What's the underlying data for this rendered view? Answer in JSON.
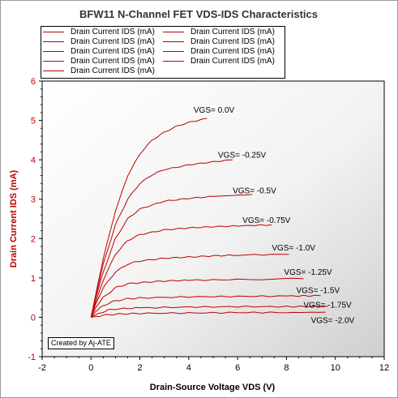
{
  "chart_data": {
    "type": "line",
    "title": "BFW11 N-Channel FET VDS-IDS Characteristics",
    "xlabel": "Drain-Source Voltage VDS (V)",
    "ylabel": "Drain Current IDS (mA)",
    "xlim": [
      -2,
      12
    ],
    "ylim": [
      -1,
      6
    ],
    "xticks": [
      "-2",
      "0",
      "2",
      "4",
      "6",
      "8",
      "10",
      "12"
    ],
    "yticks": [
      "-1",
      "0",
      "1",
      "2",
      "3",
      "4",
      "5",
      "6"
    ],
    "legend_labels": [
      "Drain Current IDS (mA)",
      "Drain Current IDS (mA)",
      "Drain Current IDS (mA)",
      "Drain Current IDS (mA)",
      "Drain Current IDS (mA)",
      "Drain Current IDS (mA)",
      "Drain Current IDS (mA)",
      "Drain Current IDS (mA)",
      "Drain Current IDS (mA)"
    ],
    "legend_placement": "top-left",
    "grid": false,
    "line_color": "#c00000",
    "annotation_box": "Created by Aj-ATE",
    "series": [
      {
        "label": "VGS=  0.0V",
        "label_at": [
          4.2,
          5.2
        ],
        "points": [
          [
            0,
            0
          ],
          [
            0.2,
            0.6
          ],
          [
            0.5,
            1.5
          ],
          [
            1,
            2.7
          ],
          [
            1.5,
            3.6
          ],
          [
            2,
            4.15
          ],
          [
            2.5,
            4.5
          ],
          [
            3,
            4.7
          ],
          [
            3.5,
            4.85
          ],
          [
            4,
            4.95
          ],
          [
            4.75,
            5.05
          ]
        ]
      },
      {
        "label": "VGS=  -0.25V",
        "label_at": [
          5.2,
          4.05
        ],
        "points": [
          [
            0,
            0
          ],
          [
            0.2,
            0.55
          ],
          [
            0.5,
            1.35
          ],
          [
            1,
            2.35
          ],
          [
            1.5,
            3.0
          ],
          [
            2,
            3.4
          ],
          [
            2.5,
            3.62
          ],
          [
            3,
            3.75
          ],
          [
            4,
            3.87
          ],
          [
            5,
            3.95
          ],
          [
            5.8,
            4.0
          ]
        ]
      },
      {
        "label": "VGS=  -0.5V",
        "label_at": [
          5.8,
          3.15
        ],
        "points": [
          [
            0,
            0
          ],
          [
            0.2,
            0.5
          ],
          [
            0.5,
            1.15
          ],
          [
            1,
            2.0
          ],
          [
            1.5,
            2.5
          ],
          [
            2,
            2.75
          ],
          [
            3,
            2.95
          ],
          [
            4,
            3.02
          ],
          [
            5,
            3.07
          ],
          [
            6.6,
            3.12
          ]
        ]
      },
      {
        "label": "VGS=  -0.75V",
        "label_at": [
          6.2,
          2.4
        ],
        "points": [
          [
            0,
            0
          ],
          [
            0.2,
            0.4
          ],
          [
            0.5,
            0.95
          ],
          [
            1,
            1.6
          ],
          [
            1.5,
            1.95
          ],
          [
            2,
            2.1
          ],
          [
            3,
            2.22
          ],
          [
            4,
            2.27
          ],
          [
            5,
            2.3
          ],
          [
            6,
            2.32
          ],
          [
            7.4,
            2.35
          ]
        ]
      },
      {
        "label": "VGS=  -1.0V",
        "label_at": [
          7.4,
          1.7
        ],
        "points": [
          [
            0,
            0
          ],
          [
            0.2,
            0.35
          ],
          [
            0.5,
            0.75
          ],
          [
            1,
            1.15
          ],
          [
            1.5,
            1.35
          ],
          [
            2,
            1.43
          ],
          [
            3,
            1.5
          ],
          [
            4,
            1.53
          ],
          [
            5,
            1.56
          ],
          [
            6,
            1.58
          ],
          [
            8.1,
            1.6
          ]
        ]
      },
      {
        "label": "VGS=  -1.25V",
        "label_at": [
          7.9,
          1.08
        ],
        "points": [
          [
            0,
            0
          ],
          [
            0.2,
            0.25
          ],
          [
            0.5,
            0.5
          ],
          [
            1,
            0.75
          ],
          [
            1.5,
            0.85
          ],
          [
            2,
            0.88
          ],
          [
            3,
            0.92
          ],
          [
            4,
            0.94
          ],
          [
            6,
            0.96
          ],
          [
            8.7,
            0.98
          ]
        ]
      },
      {
        "label": "VGS=  -1.5V",
        "label_at": [
          8.4,
          0.62
        ],
        "points": [
          [
            0,
            0
          ],
          [
            0.2,
            0.15
          ],
          [
            0.5,
            0.3
          ],
          [
            1,
            0.42
          ],
          [
            1.5,
            0.47
          ],
          [
            2,
            0.49
          ],
          [
            4,
            0.52
          ],
          [
            6,
            0.53
          ],
          [
            8,
            0.54
          ],
          [
            9.4,
            0.55
          ]
        ]
      },
      {
        "label": "VGS=  -1.75V",
        "label_at": [
          8.7,
          0.25
        ],
        "points": [
          [
            0,
            0
          ],
          [
            0.3,
            0.1
          ],
          [
            0.7,
            0.18
          ],
          [
            1,
            0.21
          ],
          [
            2,
            0.24
          ],
          [
            4,
            0.26
          ],
          [
            6,
            0.27
          ],
          [
            8,
            0.27
          ],
          [
            9.7,
            0.28
          ]
        ]
      },
      {
        "label": "VGS=  -2.0V",
        "label_at": [
          9.0,
          -0.15
        ],
        "points": [
          [
            0,
            0
          ],
          [
            0.5,
            0.05
          ],
          [
            1,
            0.08
          ],
          [
            2,
            0.1
          ],
          [
            4,
            0.11
          ],
          [
            6,
            0.12
          ],
          [
            8,
            0.12
          ],
          [
            9.6,
            0.13
          ]
        ]
      }
    ]
  }
}
